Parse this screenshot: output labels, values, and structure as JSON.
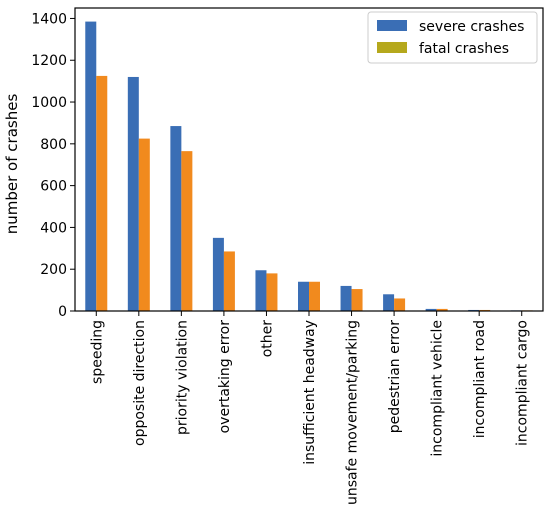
{
  "chart_data": {
    "type": "bar",
    "categories": [
      "speeding",
      "opposite direction",
      "priority violation",
      "overtaking error",
      "other",
      "insufficient headway",
      "unsafe movement/parking",
      "pedestrian error",
      "incompliant vehicle",
      "incompliant road",
      "incompliant cargo"
    ],
    "series": [
      {
        "name": "severe crashes",
        "color": "#3a6eb5",
        "values": [
          1385,
          1120,
          885,
          350,
          195,
          140,
          120,
          80,
          10,
          5,
          3
        ]
      },
      {
        "name": "fatal crashes",
        "color": "#b5a81c",
        "overlay_color": "#f18a1e",
        "values": [
          1125,
          825,
          765,
          285,
          180,
          140,
          105,
          60,
          10,
          5,
          3
        ]
      }
    ],
    "xlabel": "",
    "ylabel": "number of crashes",
    "ylim": [
      0,
      1450
    ],
    "yticks": [
      0,
      200,
      400,
      600,
      800,
      1000,
      1200,
      1400
    ],
    "grid": false,
    "legend_position": "top-right"
  }
}
